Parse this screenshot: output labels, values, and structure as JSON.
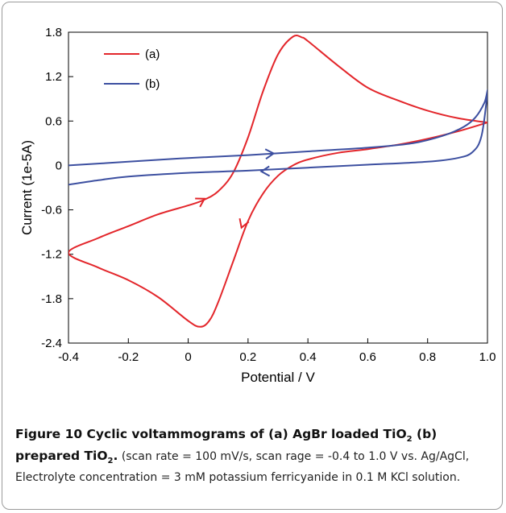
{
  "chart_data": {
    "type": "line",
    "xlabel": "Potential / V",
    "ylabel": "Current (1e-5A)",
    "xlim": [
      -0.4,
      1.0
    ],
    "ylim": [
      -2.4,
      1.8
    ],
    "xticks": [
      "-0.4",
      "-0.2",
      "0",
      "0.2",
      "0.4",
      "0.6",
      "0.8",
      "1.0"
    ],
    "xtick_values": [
      -0.4,
      -0.2,
      0,
      0.2,
      0.4,
      0.6,
      0.8,
      1.0
    ],
    "yticks": [
      "1.8",
      "1.2",
      "0.6",
      "0",
      "-0.6",
      "-1.2",
      "-1.8",
      "-2.4"
    ],
    "ytick_values": [
      1.8,
      1.2,
      0.6,
      0,
      -0.6,
      -1.2,
      -1.8,
      -2.4
    ],
    "grid": false,
    "legend_position": "top-left",
    "series": [
      {
        "name": "(a)",
        "color": "#e3262b",
        "points": [
          [
            1.0,
            0.58
          ],
          [
            0.9,
            0.46
          ],
          [
            0.8,
            0.36
          ],
          [
            0.7,
            0.28
          ],
          [
            0.6,
            0.22
          ],
          [
            0.5,
            0.17
          ],
          [
            0.4,
            0.08
          ],
          [
            0.35,
            0.0
          ],
          [
            0.3,
            -0.14
          ],
          [
            0.25,
            -0.38
          ],
          [
            0.2,
            -0.75
          ],
          [
            0.15,
            -1.3
          ],
          [
            0.1,
            -1.85
          ],
          [
            0.07,
            -2.1
          ],
          [
            0.04,
            -2.18
          ],
          [
            0.0,
            -2.1
          ],
          [
            -0.1,
            -1.78
          ],
          [
            -0.2,
            -1.55
          ],
          [
            -0.3,
            -1.38
          ],
          [
            -0.4,
            -1.18
          ],
          [
            -0.3,
            -0.98
          ],
          [
            -0.2,
            -0.82
          ],
          [
            -0.1,
            -0.66
          ],
          [
            0.0,
            -0.54
          ],
          [
            0.05,
            -0.47
          ],
          [
            0.1,
            -0.35
          ],
          [
            0.15,
            -0.1
          ],
          [
            0.2,
            0.38
          ],
          [
            0.25,
            1.0
          ],
          [
            0.3,
            1.5
          ],
          [
            0.35,
            1.74
          ],
          [
            0.38,
            1.73
          ],
          [
            0.4,
            1.68
          ],
          [
            0.5,
            1.35
          ],
          [
            0.6,
            1.05
          ],
          [
            0.7,
            0.88
          ],
          [
            0.8,
            0.74
          ],
          [
            0.9,
            0.64
          ],
          [
            1.0,
            0.58
          ]
        ]
      },
      {
        "name": "(b)",
        "color": "#3c4fa0",
        "points": [
          [
            -0.4,
            0.0
          ],
          [
            -0.2,
            0.05
          ],
          [
            0.0,
            0.1
          ],
          [
            0.2,
            0.14
          ],
          [
            0.4,
            0.19
          ],
          [
            0.6,
            0.24
          ],
          [
            0.75,
            0.3
          ],
          [
            0.85,
            0.4
          ],
          [
            0.92,
            0.52
          ],
          [
            0.96,
            0.65
          ],
          [
            0.99,
            0.85
          ],
          [
            1.0,
            1.0
          ],
          [
            0.98,
            0.4
          ],
          [
            0.95,
            0.18
          ],
          [
            0.9,
            0.1
          ],
          [
            0.8,
            0.05
          ],
          [
            0.6,
            0.01
          ],
          [
            0.4,
            -0.03
          ],
          [
            0.2,
            -0.07
          ],
          [
            0.0,
            -0.1
          ],
          [
            -0.2,
            -0.15
          ],
          [
            -0.3,
            -0.2
          ],
          [
            -0.4,
            -0.26
          ]
        ]
      }
    ]
  },
  "caption": {
    "figure_label": "Figure 10 Cyclic voltammograms of (a) AgBr loaded TiO",
    "sub1": "2",
    "b_part": " (b) prepared TiO",
    "sub2": "2",
    "b_end": ".",
    "text": " (scan rate = 100 mV/s, scan rage = -0.4 to 1.0 V vs. Ag/AgCl, Electrolyte concentration = 3 mM potassium ferricyanide in 0.1 M KCl solution."
  }
}
